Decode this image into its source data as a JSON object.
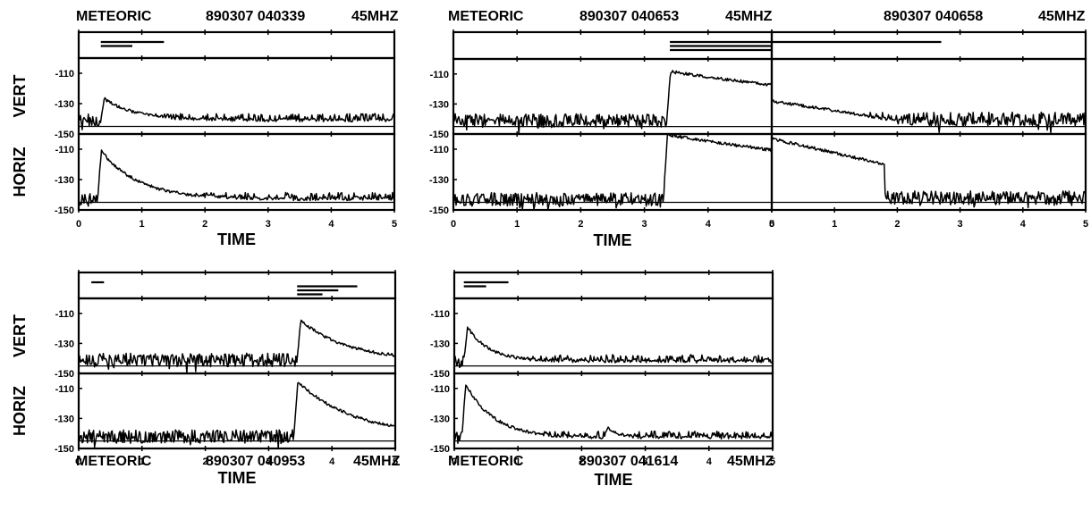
{
  "chart_data": [
    {
      "type": "line",
      "header": {
        "label": "METEORIC",
        "stamp": "890307 040339",
        "freq": "45MHZ"
      },
      "xlabel": "TIME",
      "xticks": [
        "0",
        "1",
        "2",
        "3",
        "4",
        "5"
      ],
      "xlim": [
        0,
        5
      ],
      "vert_label": "VERT",
      "horiz_label": "HORIZ",
      "yticks": [
        "-110",
        "-130",
        "-150"
      ],
      "ylim": [
        -150,
        -100
      ],
      "timing_lines": [
        {
          "x0": 0.35,
          "x1": 1.35
        },
        {
          "x0": 0.35,
          "x1": 0.85
        }
      ],
      "series": [
        {
          "name": "VERT",
          "noise_floor": -141,
          "events": [
            {
              "t": 0.35,
              "peak": -125,
              "decay": 0.5
            }
          ]
        },
        {
          "name": "HORIZ",
          "noise_floor": -143,
          "events": [
            {
              "t": 0.3,
              "peak": -108,
              "decay": 0.6
            }
          ]
        }
      ]
    },
    {
      "type": "line",
      "header": {
        "label": "METEORIC",
        "stamp": "890307 040653",
        "freq": "45MHZ"
      },
      "xlabel": "TIME",
      "xticks": [
        "0",
        "1",
        "2",
        "3",
        "4",
        "5"
      ],
      "xlim": [
        0,
        5
      ],
      "vert_label": "",
      "horiz_label": "",
      "yticks": [
        "-110",
        "-130",
        "-150"
      ],
      "ylim": [
        -150,
        -100
      ],
      "timing_lines": [
        {
          "x0": 3.4,
          "x1": 5.0
        },
        {
          "x0": 3.4,
          "x1": 5.0
        },
        {
          "x0": 3.4,
          "x1": 5.0
        }
      ],
      "series": [
        {
          "name": "VERT",
          "noise_floor": -141,
          "events": [
            {
              "t": 3.35,
              "peak": -108,
              "decay": 5.0
            }
          ]
        },
        {
          "name": "HORIZ",
          "noise_floor": -143,
          "events": [
            {
              "t": 3.3,
              "peak": -100,
              "decay": 6.0
            }
          ]
        }
      ]
    },
    {
      "type": "line",
      "header": {
        "label": "",
        "stamp": "890307 040658",
        "freq": "45MHZ"
      },
      "xlabel": "",
      "xticks": [
        "0",
        "1",
        "2",
        "3",
        "4",
        "5"
      ],
      "xlim": [
        0,
        5
      ],
      "vert_label": "",
      "horiz_label": "",
      "yticks": [],
      "ylim": [
        -150,
        -100
      ],
      "timing_lines": [
        {
          "x0": 0.0,
          "x1": 2.7
        }
      ],
      "series": [
        {
          "name": "VERT",
          "noise_floor": -140,
          "trail": {
            "from": -128,
            "to": -141,
            "end": 2.0
          }
        },
        {
          "name": "HORIZ",
          "noise_floor": -142,
          "trail": {
            "from": -103,
            "to": -120,
            "end": 1.8
          }
        }
      ]
    },
    {
      "type": "line",
      "header": {
        "label": "METEORIC",
        "stamp": "890307 040953",
        "freq": "45MHZ"
      },
      "xlabel": "TIME",
      "xticks": [
        "C",
        "1",
        "2",
        "3",
        "4",
        "5"
      ],
      "xlim": [
        0,
        5
      ],
      "vert_label": "VERT",
      "horiz_label": "HORIZ",
      "yticks": [
        "-110",
        "-130",
        "-150"
      ],
      "ylim": [
        -150,
        -100
      ],
      "timing_lines": [
        {
          "x0": 0.2,
          "x1": 0.4
        },
        {
          "x0": 3.45,
          "x1": 4.4
        },
        {
          "x0": 3.45,
          "x1": 4.1
        },
        {
          "x0": 3.45,
          "x1": 3.85
        }
      ],
      "series": [
        {
          "name": "VERT",
          "noise_floor": -141,
          "events": [
            {
              "t": 3.45,
              "peak": -112,
              "decay": 0.7
            }
          ]
        },
        {
          "name": "HORIZ",
          "noise_floor": -142,
          "events": [
            {
              "t": 3.4,
              "peak": -103,
              "decay": 0.9
            }
          ]
        }
      ]
    },
    {
      "type": "line",
      "header": {
        "label": "METEORIC",
        "stamp": "890307 041614",
        "freq": "45MHZ"
      },
      "xlabel": "TIME",
      "xticks": [
        "0",
        "1",
        "2",
        "3",
        "4",
        "5"
      ],
      "xlim": [
        0,
        5
      ],
      "vert_label": "",
      "horiz_label": "",
      "yticks": [
        "-110",
        "-130",
        "-150"
      ],
      "ylim": [
        -150,
        -100
      ],
      "timing_lines": [
        {
          "x0": 0.15,
          "x1": 0.85
        },
        {
          "x0": 0.15,
          "x1": 0.5
        }
      ],
      "series": [
        {
          "name": "VERT",
          "noise_floor": -142,
          "events": [
            {
              "t": 0.15,
              "peak": -115,
              "decay": 0.35
            }
          ]
        },
        {
          "name": "HORIZ",
          "noise_floor": -143,
          "events": [
            {
              "t": 0.12,
              "peak": -102,
              "decay": 0.45
            },
            {
              "t": 2.35,
              "peak": -134,
              "decay": 0.2
            }
          ]
        }
      ]
    }
  ]
}
